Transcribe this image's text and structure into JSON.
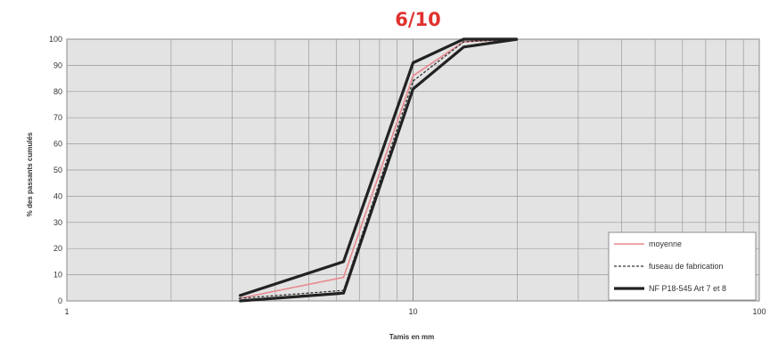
{
  "chart_data": {
    "type": "line",
    "title": "6/10",
    "xlabel": "Tamis en mm",
    "ylabel": "% des passants cumulés",
    "x_scale": "log",
    "xlim": [
      1,
      100
    ],
    "ylim": [
      0,
      100
    ],
    "x_ticks": [
      "1",
      "10",
      "100"
    ],
    "y_ticks": [
      "0",
      "10",
      "20",
      "30",
      "40",
      "50",
      "60",
      "70",
      "80",
      "90",
      "100"
    ],
    "grid": true,
    "legend_position": "bottom-right",
    "series": [
      {
        "name": "moyenne",
        "color": "#e8888e",
        "style": "solid",
        "x": [
          3.15,
          6.3,
          10,
          14,
          20
        ],
        "y": [
          1,
          9,
          86,
          99,
          100
        ]
      },
      {
        "name": "fuseau de fabrication",
        "color": "#333333",
        "style": "dashed",
        "x": [
          3.15,
          6.3,
          10,
          14,
          20
        ],
        "y": [
          1,
          4,
          84,
          99,
          100
        ]
      },
      {
        "name": "NF P18-545 Art 7 et 8",
        "color": "#222222",
        "style": "thick",
        "x": [
          3.15,
          6.3,
          10,
          14,
          20
        ],
        "y": [
          2,
          15,
          91,
          100,
          100
        ]
      },
      {
        "name": "",
        "color": "#222222",
        "style": "thick",
        "x": [
          3.15,
          6.3,
          10,
          14,
          20
        ],
        "y": [
          0,
          3,
          81,
          97,
          100
        ]
      }
    ]
  }
}
